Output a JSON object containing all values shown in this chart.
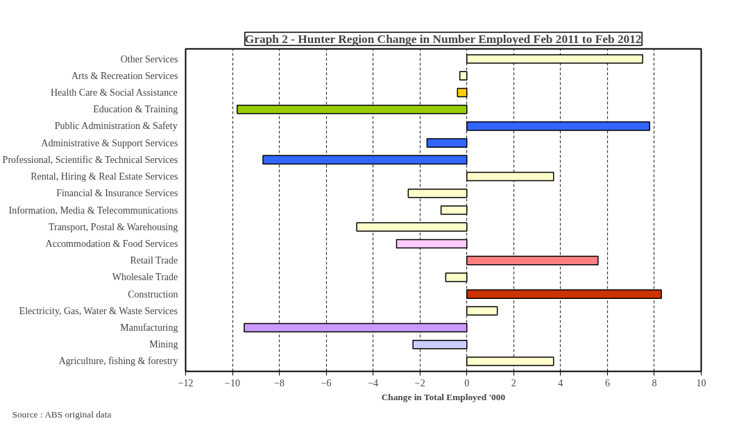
{
  "chart_data": {
    "type": "bar",
    "orientation": "horizontal",
    "title": "Graph 2 - Hunter Region Change in Number Employed Feb 2011 to Feb 2012",
    "xlabel": "Change in Total Employed '000",
    "categories": [
      "Other Services",
      "Arts & Recreation Services",
      "Health Care & Social Assistance",
      "Education & Training",
      "Public Administration & Safety",
      "Administrative & Support Services",
      "Professional, Scientific & Technical Services",
      "Rental, Hiring & Real Estate Services",
      "Financial & Insurance Services",
      "Information, Media & Telecommunications",
      "Transport, Postal & Warehousing",
      "Accommodation & Food Services",
      "Retail Trade",
      "Wholesale Trade",
      "Construction",
      "Electricity, Gas, Water & Waste Services",
      "Manufacturing",
      "Mining",
      "Agriculture, fishing & forestry"
    ],
    "values": [
      7.5,
      -0.3,
      -0.4,
      -9.8,
      7.8,
      -1.7,
      -8.7,
      3.7,
      -2.5,
      -1.1,
      -4.7,
      -3.0,
      5.6,
      -0.9,
      8.3,
      1.3,
      -9.5,
      -2.3,
      3.7
    ],
    "colors": [
      "#ffffcc",
      "#ffffcc",
      "#ffcc00",
      "#99cc00",
      "#3366ff",
      "#3366ff",
      "#3366ff",
      "#ffffcc",
      "#ffffcc",
      "#ffffcc",
      "#ffffcc",
      "#ffccff",
      "#ff8080",
      "#ffffcc",
      "#cc3300",
      "#ffffcc",
      "#cc99ff",
      "#ccccff",
      "#ffffcc"
    ],
    "xlim": [
      -12,
      10
    ],
    "xticks": [
      -12,
      -10,
      -8,
      -6,
      -4,
      -2,
      0,
      2,
      4,
      6,
      8,
      10
    ],
    "grid": "x",
    "annotations": [
      "Source : ABS original data"
    ]
  }
}
